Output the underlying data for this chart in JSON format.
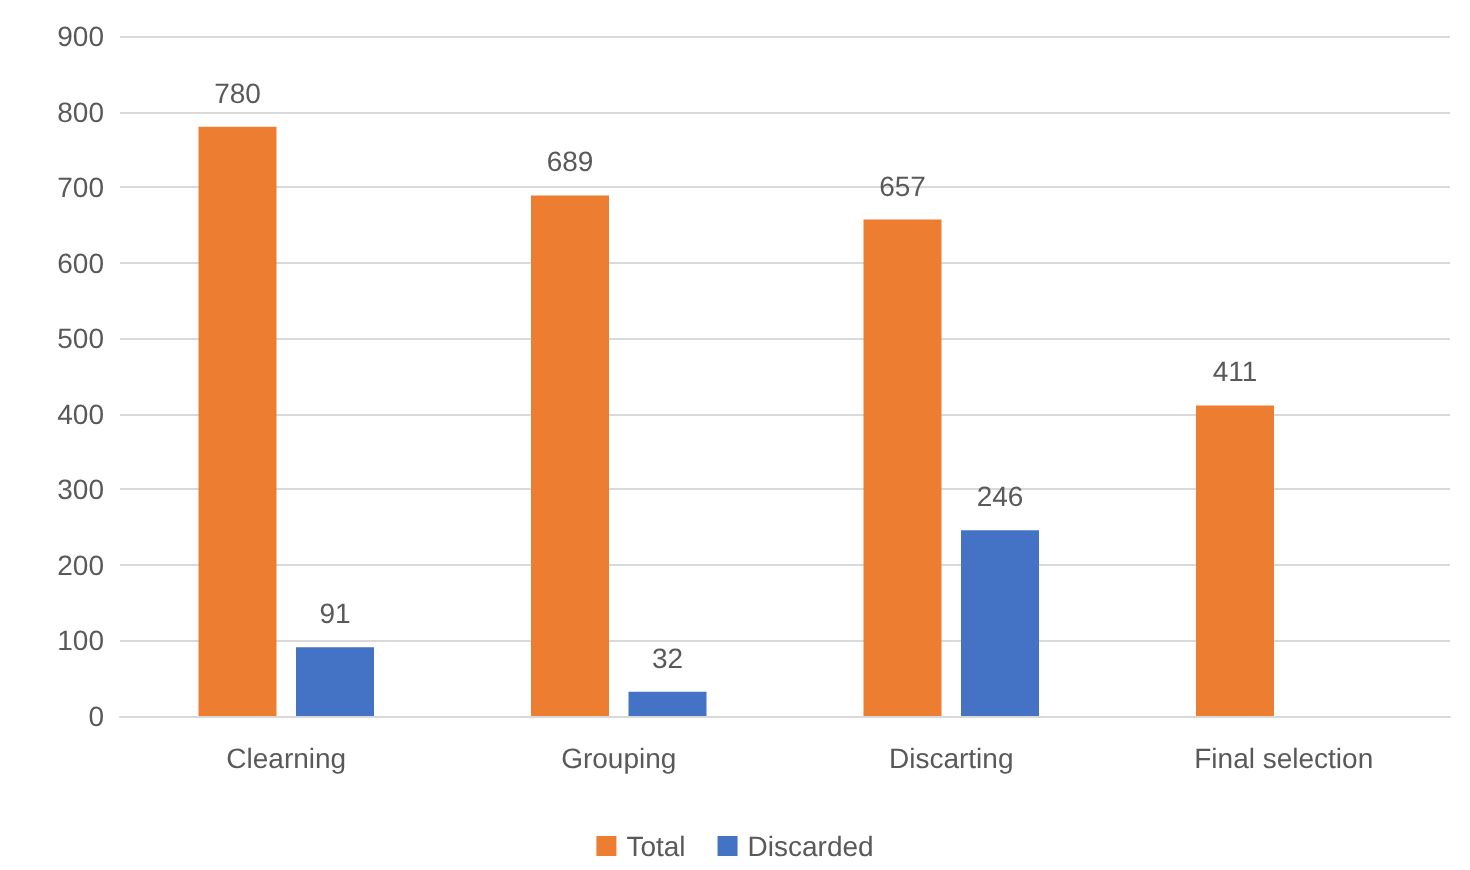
{
  "chart_data": {
    "type": "bar",
    "categories": [
      "Clearning",
      "Grouping",
      "Discarting",
      "Final selection"
    ],
    "series": [
      {
        "name": "Total",
        "color": "#ed7d31",
        "values": [
          780,
          689,
          657,
          411
        ]
      },
      {
        "name": "Discarded",
        "color": "#4472c4",
        "values": [
          91,
          32,
          246,
          null
        ]
      }
    ],
    "ylim": [
      0,
      900
    ],
    "yticks": [
      0,
      100,
      200,
      300,
      400,
      500,
      600,
      700,
      800,
      900
    ],
    "grid": "y",
    "legend": "bottom",
    "data_labels": true
  }
}
